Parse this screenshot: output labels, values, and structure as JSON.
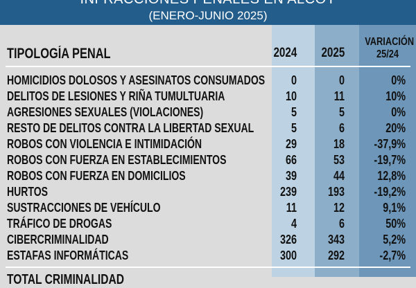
{
  "title": "INFRACCIONES PENALES EN ALCOY",
  "subtitle": "(ENERO-JUNIO 2025)",
  "header": {
    "label": "TIPOLOGÍA PENAL",
    "y2024": "2024",
    "y2025": "2025",
    "variation_line1": "VARIACIÓN",
    "variation_line2": "25/24"
  },
  "rows": [
    {
      "label": "HOMICIDIOS DOLOSOS Y ASESINATOS CONSUMADOS",
      "v2024": "0",
      "v2025": "0",
      "var": "0%"
    },
    {
      "label": "DELITOS DE LESIONES Y RIÑA TUMULTUARIA",
      "v2024": "10",
      "v2025": "11",
      "var": "10%"
    },
    {
      "label": "AGRESIONES SEXUALES (VIOLACIONES)",
      "v2024": "5",
      "v2025": "5",
      "var": "0%"
    },
    {
      "label": "RESTO DE DELITOS CONTRA LA LIBERTAD SEXUAL",
      "v2024": "5",
      "v2025": "6",
      "var": "20%"
    },
    {
      "label": "ROBOS CON VIOLENCIA E INTIMIDACIÓN",
      "v2024": "29",
      "v2025": "18",
      "var": "-37,9%"
    },
    {
      "label": "ROBOS CON FUERZA EN ESTABLECIMIENTOS",
      "v2024": "66",
      "v2025": "53",
      "var": "-19,7%"
    },
    {
      "label": "ROBOS CON FUERZA EN DOMICILIOS",
      "v2024": "39",
      "v2025": "44",
      "var": "12,8%"
    },
    {
      "label": "HURTOS",
      "v2024": "239",
      "v2025": "193",
      "var": "-19,2%"
    },
    {
      "label": "SUSTRACCIONES DE VEHÍCULO",
      "v2024": "11",
      "v2025": "12",
      "var": "9,1%"
    },
    {
      "label": "TRÁFICO DE DROGAS",
      "v2024": "4",
      "v2025": "6",
      "var": "50%"
    },
    {
      "label": "CIBERCRIMINALIDAD",
      "v2024": "326",
      "v2025": "343",
      "var": "5,2%"
    },
    {
      "label": "ESTAFAS INFORMÁTICAS",
      "v2024": "300",
      "v2025": "292",
      "var": "-2,7%"
    }
  ],
  "total_label": "TOTAL CRIMINALIDAD"
}
